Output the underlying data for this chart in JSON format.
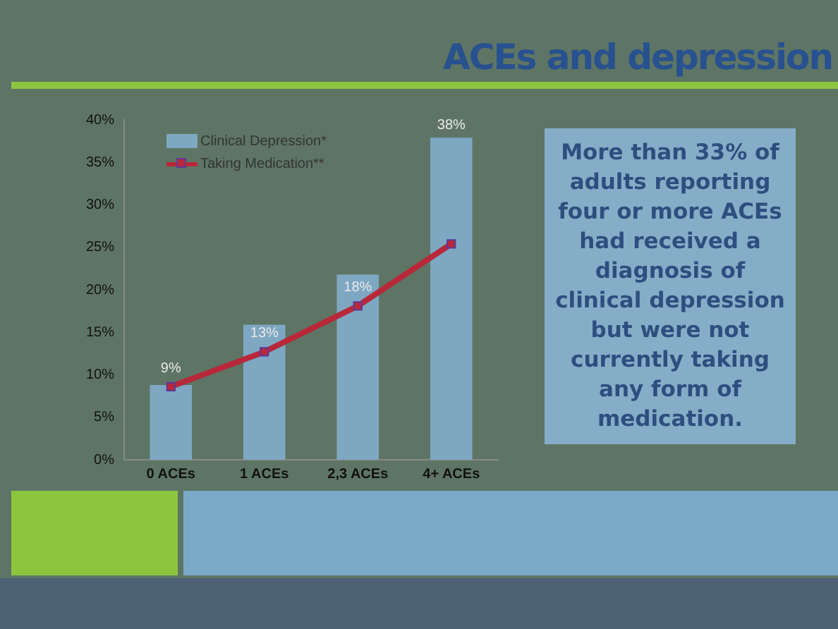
{
  "chart_data": {
    "type": "bar",
    "title": "ACEs and depression",
    "categories": [
      "0 ACEs",
      "1 ACEs",
      "2,3 ACEs",
      "4+ ACEs"
    ],
    "series": [
      {
        "name": "Clinical Depression*",
        "color": "#7ea7c2",
        "values": [
          8.8,
          15.9,
          21.8,
          37.9
        ],
        "value_labels": [
          null,
          null,
          null,
          "38%"
        ]
      },
      {
        "name": "Taking Medication**",
        "type": "line",
        "color": "#b8283a",
        "values": [
          8.6,
          12.7,
          18.1,
          25.4
        ],
        "value_labels": [
          "9%",
          "13%",
          "18%",
          null
        ]
      }
    ],
    "ylim": [
      0,
      40
    ],
    "yticks": [
      {
        "value": 0,
        "label": "0%"
      },
      {
        "value": 5,
        "label": "5%"
      },
      {
        "value": 10,
        "label": "10%"
      },
      {
        "value": 15,
        "label": "15%"
      },
      {
        "value": 20,
        "label": "20%"
      },
      {
        "value": 25,
        "label": "25%"
      },
      {
        "value": 30,
        "label": "30%"
      },
      {
        "value": 35,
        "label": "35%"
      },
      {
        "value": 40,
        "label": "40%"
      }
    ],
    "grid": false,
    "legend": "top left",
    "marker": "square",
    "line_style": "solid",
    "annotations": [
      "More than 33% of adults reporting four or more ACEs had received a diagnosis of clinical depression but were not currently taking any form of medication."
    ]
  }
}
